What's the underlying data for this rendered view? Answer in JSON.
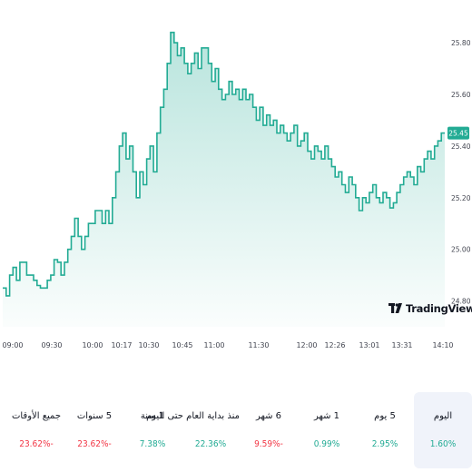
{
  "chart_data": {
    "type": "area",
    "x_tick_labels": [
      "09:00",
      "09:30",
      "10:00",
      "10:17",
      "10:30",
      "10:45",
      "11:00",
      "11:30",
      "12:00",
      "12:26",
      "13:01",
      "13:31",
      "14:10"
    ],
    "y_tick_labels": [
      "25.80",
      "25.60",
      "25.40",
      "25.20",
      "25.00",
      "24.80"
    ],
    "ylim": [
      24.7,
      25.86
    ],
    "last_price_label": "25.45",
    "values": [
      24.85,
      24.82,
      24.9,
      24.93,
      24.88,
      24.95,
      24.95,
      24.9,
      24.9,
      24.88,
      24.86,
      24.85,
      24.85,
      24.88,
      24.9,
      24.96,
      24.95,
      24.9,
      24.95,
      25.0,
      25.05,
      25.12,
      25.05,
      25.0,
      25.05,
      25.1,
      25.1,
      25.15,
      25.15,
      25.1,
      25.15,
      25.1,
      25.2,
      25.3,
      25.4,
      25.45,
      25.35,
      25.4,
      25.3,
      25.2,
      25.3,
      25.25,
      25.35,
      25.4,
      25.3,
      25.45,
      25.55,
      25.62,
      25.72,
      25.84,
      25.8,
      25.75,
      25.78,
      25.72,
      25.68,
      25.72,
      25.76,
      25.7,
      25.78,
      25.78,
      25.72,
      25.65,
      25.7,
      25.62,
      25.58,
      25.6,
      25.65,
      25.6,
      25.62,
      25.58,
      25.62,
      25.58,
      25.6,
      25.55,
      25.5,
      25.55,
      25.48,
      25.52,
      25.48,
      25.5,
      25.45,
      25.48,
      25.45,
      25.42,
      25.45,
      25.48,
      25.4,
      25.42,
      25.45,
      25.38,
      25.35,
      25.4,
      25.38,
      25.35,
      25.4,
      25.35,
      25.32,
      25.28,
      25.3,
      25.25,
      25.22,
      25.28,
      25.25,
      25.2,
      25.15,
      25.2,
      25.18,
      25.22,
      25.25,
      25.2,
      25.18,
      25.22,
      25.2,
      25.16,
      25.18,
      25.22,
      25.25,
      25.28,
      25.3,
      25.28,
      25.25,
      25.32,
      25.3,
      25.35,
      25.38,
      25.35,
      25.4,
      25.42,
      25.45,
      25.45
    ],
    "grid": false,
    "color": "#22ab94"
  },
  "logo": {
    "text": "TradingView"
  },
  "periods": [
    {
      "label": "اليوم",
      "value": "1.60%",
      "sign": "positive",
      "selected": true
    },
    {
      "label": "5 يوم",
      "value": "2.95%",
      "sign": "positive",
      "selected": false
    },
    {
      "label": "1 شهر",
      "value": "0.99%",
      "sign": "positive",
      "selected": false
    },
    {
      "label": "6 شهر",
      "value": "9.59%-",
      "sign": "negative",
      "selected": false
    },
    {
      "label": "منذ بداية العام حتى اليوم",
      "value": "22.36%",
      "sign": "positive",
      "selected": false
    },
    {
      "label": "1 سنة",
      "value": "7.38%",
      "sign": "positive",
      "selected": false
    },
    {
      "label": "5 سنوات",
      "value": "23.62%-",
      "sign": "negative",
      "selected": false
    },
    {
      "label": "جميع الأوقات",
      "value": "23.62%-",
      "sign": "negative",
      "selected": false
    }
  ]
}
